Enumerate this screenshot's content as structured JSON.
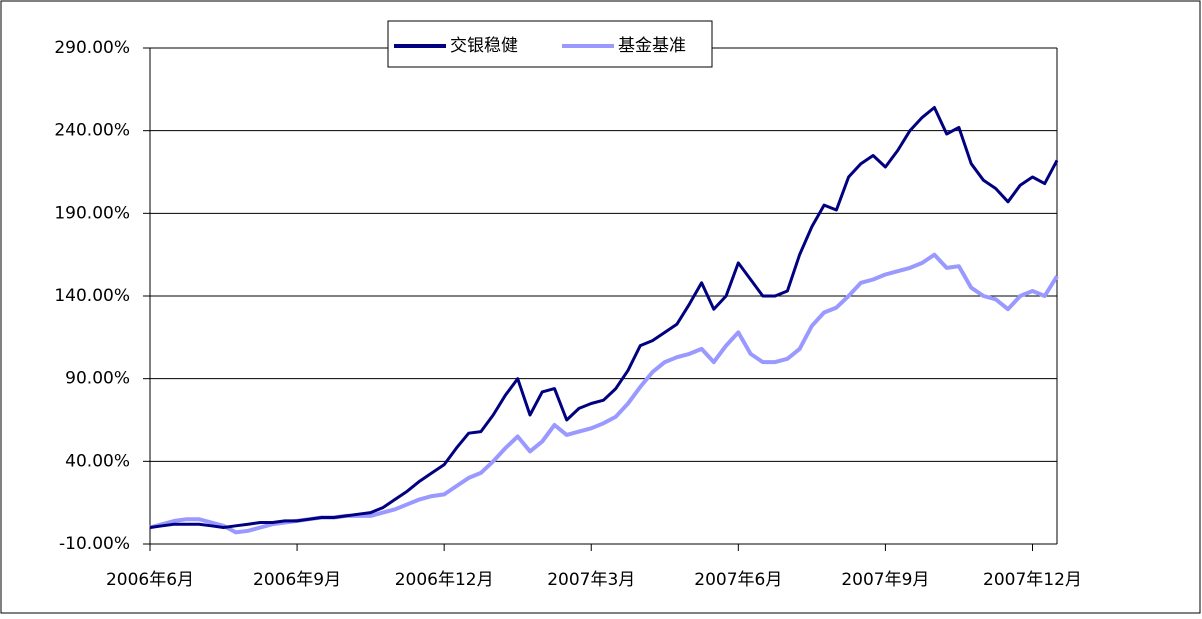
{
  "chart_data": {
    "type": "line",
    "categories": [
      "2006年6月",
      null,
      null,
      null,
      null,
      null,
      null,
      null,
      null,
      null,
      null,
      null,
      "2006年9月",
      null,
      null,
      null,
      null,
      null,
      null,
      null,
      null,
      null,
      null,
      null,
      "2006年12月",
      null,
      null,
      null,
      null,
      null,
      null,
      null,
      null,
      null,
      null,
      null,
      "2007年3月",
      null,
      null,
      null,
      null,
      null,
      null,
      null,
      null,
      null,
      null,
      null,
      "2007年6月",
      null,
      null,
      null,
      null,
      null,
      null,
      null,
      null,
      null,
      null,
      null,
      "2007年9月",
      null,
      null,
      null,
      null,
      null,
      null,
      null,
      null,
      null,
      null,
      null,
      "2007年12月",
      null,
      null
    ],
    "series": [
      {
        "name": "交银稳健",
        "color": "#000080",
        "values": [
          0,
          1,
          2,
          2,
          2,
          1,
          0,
          1,
          2,
          3,
          3,
          4,
          4,
          5,
          6,
          6,
          7,
          8,
          9,
          12,
          17,
          22,
          28,
          33,
          38,
          48,
          57,
          58,
          68,
          80,
          90,
          68,
          82,
          84,
          65,
          72,
          75,
          77,
          84,
          95,
          110,
          113,
          118,
          123,
          135,
          148,
          132,
          140,
          160,
          150,
          140,
          140,
          143,
          165,
          182,
          195,
          192,
          212,
          220,
          225,
          218,
          228,
          240,
          248,
          254,
          238,
          242,
          220,
          210,
          205,
          197,
          207,
          212,
          208,
          222
        ]
      },
      {
        "name": "基金基准",
        "color": "#9999ff",
        "values": [
          0,
          2,
          4,
          5,
          5,
          3,
          1,
          -3,
          -2,
          0,
          2,
          3,
          4,
          5,
          6,
          6,
          7,
          7,
          7,
          9,
          11,
          14,
          17,
          19,
          20,
          25,
          30,
          33,
          40,
          48,
          55,
          46,
          52,
          62,
          56,
          58,
          60,
          63,
          67,
          75,
          85,
          94,
          100,
          103,
          105,
          108,
          100,
          110,
          118,
          105,
          100,
          100,
          102,
          108,
          122,
          130,
          133,
          140,
          148,
          150,
          153,
          155,
          157,
          160,
          165,
          157,
          158,
          145,
          140,
          138,
          132,
          140,
          143,
          140,
          152
        ]
      }
    ],
    "ylim": [
      -10,
      290
    ],
    "yticks": [
      {
        "value": -10,
        "label": "-10.00%"
      },
      {
        "value": 40,
        "label": "40.00%"
      },
      {
        "value": 90,
        "label": "90.00%"
      },
      {
        "value": 140,
        "label": "140.00%"
      },
      {
        "value": 190,
        "label": "190.00%"
      },
      {
        "value": 240,
        "label": "240.00%"
      },
      {
        "value": 290,
        "label": "290.00%"
      }
    ],
    "grid": true
  }
}
